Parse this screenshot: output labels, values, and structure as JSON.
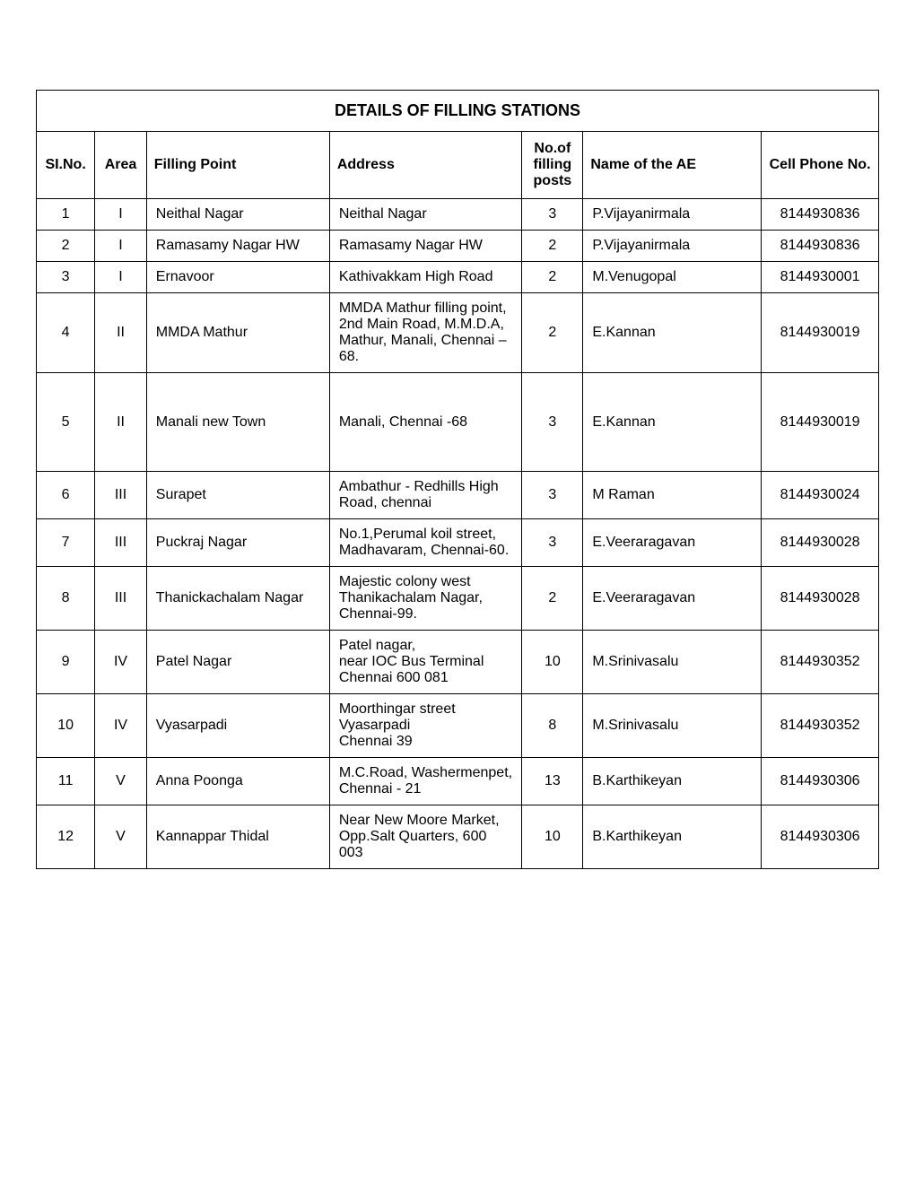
{
  "table": {
    "title": "DETAILS OF FILLING STATIONS",
    "columns": [
      "SI.No.",
      "Area",
      "Filling Point",
      "Address",
      "No.of filling posts",
      "Name of the AE",
      "Cell Phone No."
    ],
    "rows": [
      {
        "slno": "1",
        "area": "I",
        "filling": "Neithal Nagar",
        "address": "Neithal Nagar",
        "posts": "3",
        "ae": "P.Vijayanirmala",
        "phone": "8144930836"
      },
      {
        "slno": "2",
        "area": "I",
        "filling": "Ramasamy Nagar HW",
        "address": "Ramasamy Nagar HW",
        "posts": "2",
        "ae": "P.Vijayanirmala",
        "phone": "8144930836"
      },
      {
        "slno": "3",
        "area": "I",
        "filling": "Ernavoor",
        "address": "Kathivakkam High Road",
        "posts": "2",
        "ae": "M.Venugopal",
        "phone": "8144930001"
      },
      {
        "slno": "4",
        "area": "II",
        "filling": "MMDA Mathur",
        "address": "MMDA Mathur  filling point, 2nd Main Road, M.M.D.A, Mathur, Manali, Chennai – 68.",
        "posts": "2",
        "ae": "E.Kannan",
        "phone": "8144930019"
      },
      {
        "slno": "5",
        "area": "II",
        "filling": "Manali new Town",
        "address": "Manali, Chennai -68",
        "posts": "3",
        "ae": "E.Kannan",
        "phone": "8144930019",
        "tall": true
      },
      {
        "slno": "6",
        "area": "III",
        "filling": "Surapet",
        "address": "Ambathur - Redhills High Road, chennai",
        "posts": "3",
        "ae": "M Raman",
        "phone": "8144930024"
      },
      {
        "slno": "7",
        "area": "III",
        "filling": "Puckraj Nagar",
        "address": "No.1,Perumal koil street, Madhavaram, Chennai-60.",
        "posts": "3",
        "ae": "E.Veeraragavan",
        "phone": "8144930028"
      },
      {
        "slno": "8",
        "area": "III",
        "filling": "Thanickachalam Nagar",
        "address": "Majestic colony west Thanikachalam Nagar, Chennai-99.",
        "posts": "2",
        "ae": "E.Veeraragavan",
        "phone": "8144930028"
      },
      {
        "slno": "9",
        "area": "IV",
        "filling": "Patel Nagar",
        "address": "Patel nagar,\nnear IOC Bus Terminal Chennai 600 081",
        "posts": "10",
        "ae": "M.Srinivasalu",
        "phone": "8144930352"
      },
      {
        "slno": "10",
        "area": "IV",
        "filling": "Vyasarpadi",
        "address": "Moorthingar street Vyasarpadi\nChennai 39",
        "posts": "8",
        "ae": "M.Srinivasalu",
        "phone": "8144930352"
      },
      {
        "slno": "11",
        "area": "V",
        "filling": "Anna Poonga",
        "address": "M.C.Road, Washermenpet, Chennai - 21",
        "posts": "13",
        "ae": "B.Karthikeyan",
        "phone": "8144930306"
      },
      {
        "slno": "12",
        "area": "V",
        "filling": "Kannappar Thidal",
        "address": "Near New Moore Market,\nOpp.Salt Quarters, 600 003",
        "posts": "10",
        "ae": "B.Karthikeyan",
        "phone": "8144930306"
      }
    ],
    "border_color": "#1a1a8a",
    "cell_border_color": "#000000",
    "background_color": "#ffffff",
    "title_fontsize": 18,
    "header_fontsize": 16,
    "cell_fontsize": 16
  }
}
